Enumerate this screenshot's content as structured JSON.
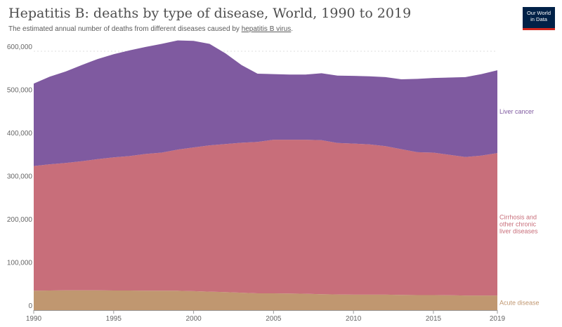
{
  "header": {
    "title": "Hepatitis B: deaths by type of disease, World, 1990 to 2019",
    "subtitle_prefix": "The estimated annual number of deaths from different diseases caused by ",
    "subtitle_link": "hepatitis B virus",
    "subtitle_suffix": "."
  },
  "logo": {
    "line1": "Our World",
    "line2": "in Data",
    "bg_color": "#002147",
    "accent_color": "#ce261e"
  },
  "chart_data": {
    "type": "area",
    "stacked": true,
    "title": "Hepatitis B: deaths by type of disease, World, 1990 to 2019",
    "xlim": [
      1990,
      2019
    ],
    "ylim": [
      0,
      600000
    ],
    "x_ticks": [
      1990,
      1995,
      2000,
      2005,
      2010,
      2015,
      2019
    ],
    "y_ticks": [
      0,
      100000,
      200000,
      300000,
      400000,
      500000,
      600000
    ],
    "y_tick_labels": [
      "0",
      "100,000",
      "200,000",
      "300,000",
      "400,000",
      "500,000",
      "600,000"
    ],
    "grid": "horizontal dotted",
    "legend": "right, inline labels",
    "x": [
      1990,
      1991,
      1992,
      1993,
      1994,
      1995,
      1996,
      1997,
      1998,
      1999,
      2000,
      2001,
      2002,
      2003,
      2004,
      2005,
      2006,
      2007,
      2008,
      2009,
      2010,
      2011,
      2012,
      2013,
      2014,
      2015,
      2016,
      2017,
      2018,
      2019
    ],
    "series": [
      {
        "name": "Acute disease",
        "color": "#c09770",
        "values": [
          45000,
          45500,
          46000,
          46000,
          46000,
          45500,
          45500,
          45000,
          45000,
          45000,
          44000,
          43000,
          42000,
          40500,
          39000,
          39000,
          38500,
          38000,
          37000,
          36500,
          36000,
          36000,
          36000,
          35500,
          35000,
          35000,
          34500,
          34000,
          34000,
          34000
        ]
      },
      {
        "name": "Cirrhosis and other chronic liver diseases",
        "color": "#c86e7a",
        "values": [
          289000,
          292500,
          295000,
          299000,
          304000,
          308500,
          311500,
          317000,
          320000,
          327000,
          333000,
          339000,
          343000,
          347500,
          351000,
          356000,
          356500,
          357000,
          357000,
          351000,
          350000,
          348000,
          344000,
          337500,
          331000,
          330000,
          325500,
          321000,
          324000,
          330000
        ]
      },
      {
        "name": "Liver cancer",
        "color": "#7f5aa0",
        "values": [
          191000,
          203000,
          212000,
          223000,
          232000,
          239000,
          245000,
          248000,
          252000,
          253000,
          247000,
          235000,
          210000,
          180000,
          158000,
          152000,
          151000,
          151000,
          155000,
          156000,
          157000,
          158000,
          160000,
          162000,
          170000,
          173000,
          179000,
          185000,
          189000,
          192000
        ]
      }
    ]
  }
}
